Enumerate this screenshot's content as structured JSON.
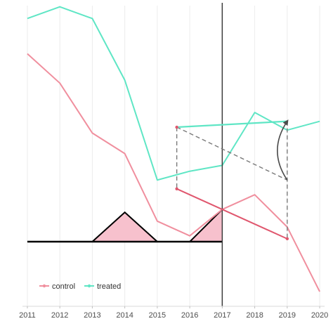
{
  "chart_data": {
    "type": "line",
    "title": "",
    "xlabel": "",
    "ylabel": "",
    "x": [
      2011,
      2012,
      2013,
      2014,
      2015,
      2016,
      2017,
      2018,
      2019,
      2020
    ],
    "xlim": [
      2010.85,
      2020.15
    ],
    "ylim": [
      0,
      100
    ],
    "grid": "vertical",
    "legend_position": "bottom-left",
    "series": [
      {
        "name": "control",
        "color": "#f08f9e",
        "values": [
          86,
          76,
          59,
          52,
          29,
          24,
          33,
          38,
          27,
          5
        ]
      },
      {
        "name": "treated",
        "color": "#5fe6c5",
        "values": [
          98,
          102,
          98,
          77,
          43,
          46,
          48,
          66,
          60,
          63
        ]
      }
    ],
    "annotations": {
      "intervention_line_x": 2017,
      "intervention_color": "#3c3c3c",
      "triangle_fill": "#f7c1cd",
      "triangle_stroke": "#000000",
      "baseline_y": 22,
      "triangles": [
        {
          "x": [
            2013,
            2014,
            2015
          ],
          "peak": 32
        },
        {
          "x": [
            2016,
            2017,
            2017
          ],
          "peak": 33
        }
      ],
      "projection_line": {
        "color": "#e0576e",
        "points": [
          [
            2015.6,
            40
          ],
          [
            2019,
            23
          ]
        ]
      },
      "treated_segment": {
        "color": "#5fe6c5",
        "points": [
          [
            2015.6,
            61
          ],
          [
            2019,
            63
          ]
        ]
      },
      "dashed_segments": {
        "color": "#7a7a7a",
        "lines": [
          [
            [
              2015.6,
              61
            ],
            [
              2015.6,
              40
            ]
          ],
          [
            [
              2015.6,
              61
            ],
            [
              2019,
              43
            ]
          ],
          [
            [
              2019,
              63
            ],
            [
              2019,
              23
            ]
          ]
        ]
      },
      "curved_arrow": {
        "color": "#4a4a4a",
        "from": [
          2019,
          43
        ],
        "to": [
          2019,
          63
        ]
      }
    }
  }
}
